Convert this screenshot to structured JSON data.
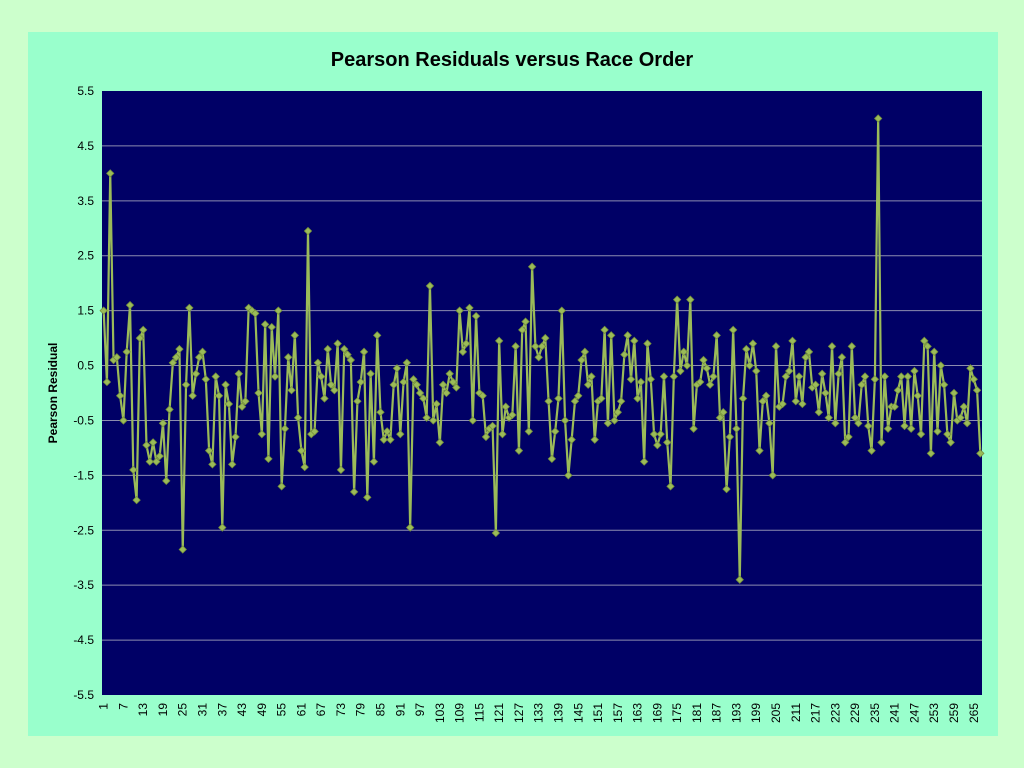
{
  "colors": {
    "page_background": "#ccffcc",
    "chart_area": "#99ffcc",
    "plot_area": "#000066",
    "gridline": "#8c8cb0",
    "series_line": "#9bbb59",
    "marker_fill": "#9bbb59",
    "marker_border": "#76923c"
  },
  "chart_data": {
    "type": "line",
    "title": "Pearson Residuals versus Race Order",
    "xlabel": "",
    "ylabel": "Pearson Residual",
    "ylim": [
      -5.5,
      5.5
    ],
    "yticks": [
      "5.5",
      "4.5",
      "3.5",
      "2.5",
      "1.5",
      "0.5",
      "-0.5",
      "-1.5",
      "-2.5",
      "-3.5",
      "-4.5",
      "-5.5"
    ],
    "xlim": [
      1,
      268
    ],
    "xticks": [
      "1",
      "7",
      "13",
      "19",
      "25",
      "31",
      "37",
      "43",
      "49",
      "55",
      "61",
      "67",
      "73",
      "79",
      "85",
      "91",
      "97",
      "103",
      "109",
      "115",
      "121",
      "127",
      "133",
      "139",
      "145",
      "151",
      "157",
      "163",
      "169",
      "175",
      "181",
      "187",
      "193",
      "199",
      "205",
      "211",
      "217",
      "223",
      "229",
      "235",
      "241",
      "247",
      "253",
      "259",
      "265"
    ],
    "grid": true,
    "legend": "none",
    "marker": "diamond",
    "series": [
      {
        "values": [
          1.5,
          0.2,
          4.0,
          0.6,
          0.65,
          -0.05,
          -0.5,
          0.75,
          1.6,
          -1.4,
          -1.95,
          1.0,
          1.15,
          -0.95,
          -1.25,
          -0.9,
          -1.25,
          -1.15,
          -0.55,
          -1.6,
          -0.3,
          0.55,
          0.65,
          0.8,
          -2.85,
          0.15,
          1.55,
          -0.05,
          0.35,
          0.65,
          0.75,
          0.25,
          -1.05,
          -1.3,
          0.3,
          -0.05,
          -2.45,
          0.15,
          -0.2,
          -1.3,
          -0.8,
          0.35,
          -0.25,
          -0.15,
          1.55,
          1.5,
          1.45,
          0.0,
          -0.75,
          1.25,
          -1.2,
          1.2,
          0.3,
          1.5,
          -1.7,
          -0.65,
          0.65,
          0.05,
          1.05,
          -0.45,
          -1.05,
          -1.35,
          2.95,
          -0.75,
          -0.7,
          0.55,
          0.3,
          -0.1,
          0.8,
          0.15,
          0.05,
          0.9,
          -1.4,
          0.8,
          0.7,
          0.6,
          -1.8,
          -0.15,
          0.2,
          0.75,
          -1.9,
          0.35,
          -1.25,
          1.05,
          -0.35,
          -0.85,
          -0.7,
          -0.85,
          0.15,
          0.45,
          -0.75,
          0.2,
          0.55,
          -2.45,
          0.25,
          0.15,
          0.0,
          -0.1,
          -0.45,
          1.95,
          -0.5,
          -0.2,
          -0.9,
          0.15,
          0.0,
          0.35,
          0.2,
          0.1,
          1.5,
          0.75,
          0.9,
          1.55,
          -0.5,
          1.4,
          0.0,
          -0.05,
          -0.8,
          -0.65,
          -0.6,
          -2.55,
          0.95,
          -0.75,
          -0.25,
          -0.45,
          -0.4,
          0.85,
          -1.05,
          1.15,
          1.3,
          -0.7,
          2.3,
          0.85,
          0.65,
          0.85,
          1.0,
          -0.15,
          -1.2,
          -0.7,
          -0.1,
          1.5,
          -0.5,
          -1.5,
          -0.85,
          -0.15,
          -0.05,
          0.6,
          0.75,
          0.15,
          0.3,
          -0.85,
          -0.15,
          -0.1,
          1.15,
          -0.55,
          1.05,
          -0.5,
          -0.35,
          -0.15,
          0.7,
          1.05,
          0.25,
          0.95,
          -0.1,
          0.2,
          -1.25,
          0.9,
          0.25,
          -0.75,
          -0.95,
          -0.75,
          0.3,
          -0.9,
          -1.7,
          0.3,
          1.7,
          0.4,
          0.75,
          0.5,
          1.7,
          -0.65,
          0.15,
          0.2,
          0.6,
          0.45,
          0.15,
          0.3,
          1.05,
          -0.45,
          -0.35,
          -1.75,
          -0.8,
          1.15,
          -0.65,
          -3.4,
          -0.1,
          0.8,
          0.5,
          0.9,
          0.4,
          -1.05,
          -0.15,
          -0.05,
          -0.55,
          -1.5,
          0.85,
          -0.25,
          -0.2,
          0.3,
          0.4,
          0.95,
          -0.15,
          0.3,
          -0.2,
          0.65,
          0.75,
          0.1,
          0.15,
          -0.35,
          0.35,
          0.0,
          -0.45,
          0.85,
          -0.55,
          0.35,
          0.65,
          -0.9,
          -0.8,
          0.85,
          -0.45,
          -0.55,
          0.15,
          0.3,
          -0.6,
          -1.05,
          0.25,
          5.0,
          -0.9,
          0.3,
          -0.65,
          -0.25,
          -0.25,
          0.05,
          0.3,
          -0.6,
          0.3,
          -0.65,
          0.4,
          -0.05,
          -0.75,
          0.95,
          0.85,
          -1.1,
          0.75,
          -0.7,
          0.5,
          0.15,
          -0.75,
          -0.9,
          0.0,
          -0.5,
          -0.45,
          -0.25,
          -0.55,
          0.45,
          0.25,
          0.05,
          -1.1
        ]
      }
    ]
  }
}
